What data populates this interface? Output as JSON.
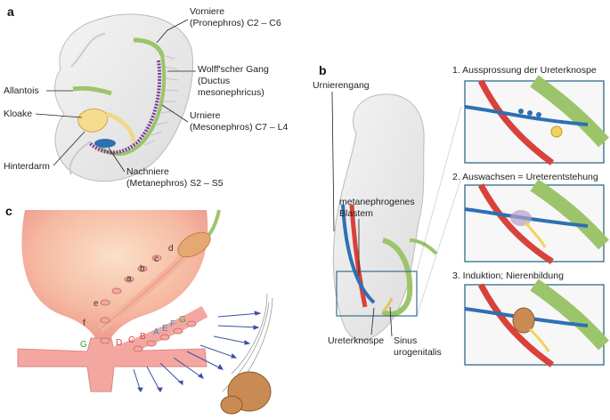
{
  "panel_a": {
    "letter": "a",
    "labels": {
      "vorniere_1": "Vorniere",
      "vorniere_2": "(Pronephros) C2 – C6",
      "wolff_1": "Wolff'scher Gang",
      "wolff_2": "(Ductus",
      "wolff_3": "mesonephricus)",
      "allantois": "Allantois",
      "kloake": "Kloake",
      "urniere_1": "Urniere",
      "urniere_2": "(Mesonephros) C7 – L4",
      "hinterdarm": "Hinterdarm",
      "nachniere_1": "Nachniere",
      "nachniere_2": "(Metanephros) S2 – S5"
    }
  },
  "panel_b": {
    "letter": "b",
    "labels": {
      "urnierengang": "Urnierengang",
      "blastem_1": "metanephrogenes",
      "blastem_2": "Blastem",
      "ureterknospe": "Ureterknospe",
      "sinus_1": "Sinus",
      "sinus_2": "urogenitalis"
    },
    "steps": [
      "1. Aussprossung der Ureterknospe",
      "2. Auswachsen = Ureterentstehung",
      "3. Induktion; Nierenbildung"
    ]
  },
  "panel_c": {
    "letter": "c",
    "letters_dark": [
      "a",
      "b",
      "c",
      "d",
      "e",
      "f"
    ],
    "letters_red": [
      "D",
      "C",
      "B"
    ],
    "letters_blue": [
      "A",
      "E",
      "F"
    ],
    "letters_green": [
      "G",
      "G"
    ]
  },
  "colors": {
    "green": "#9cc46a",
    "blue": "#2f6fb3",
    "red": "#d9413a",
    "purple": "#7b3f98",
    "peach": "#f7c9a8",
    "embryo": "#ececec"
  }
}
